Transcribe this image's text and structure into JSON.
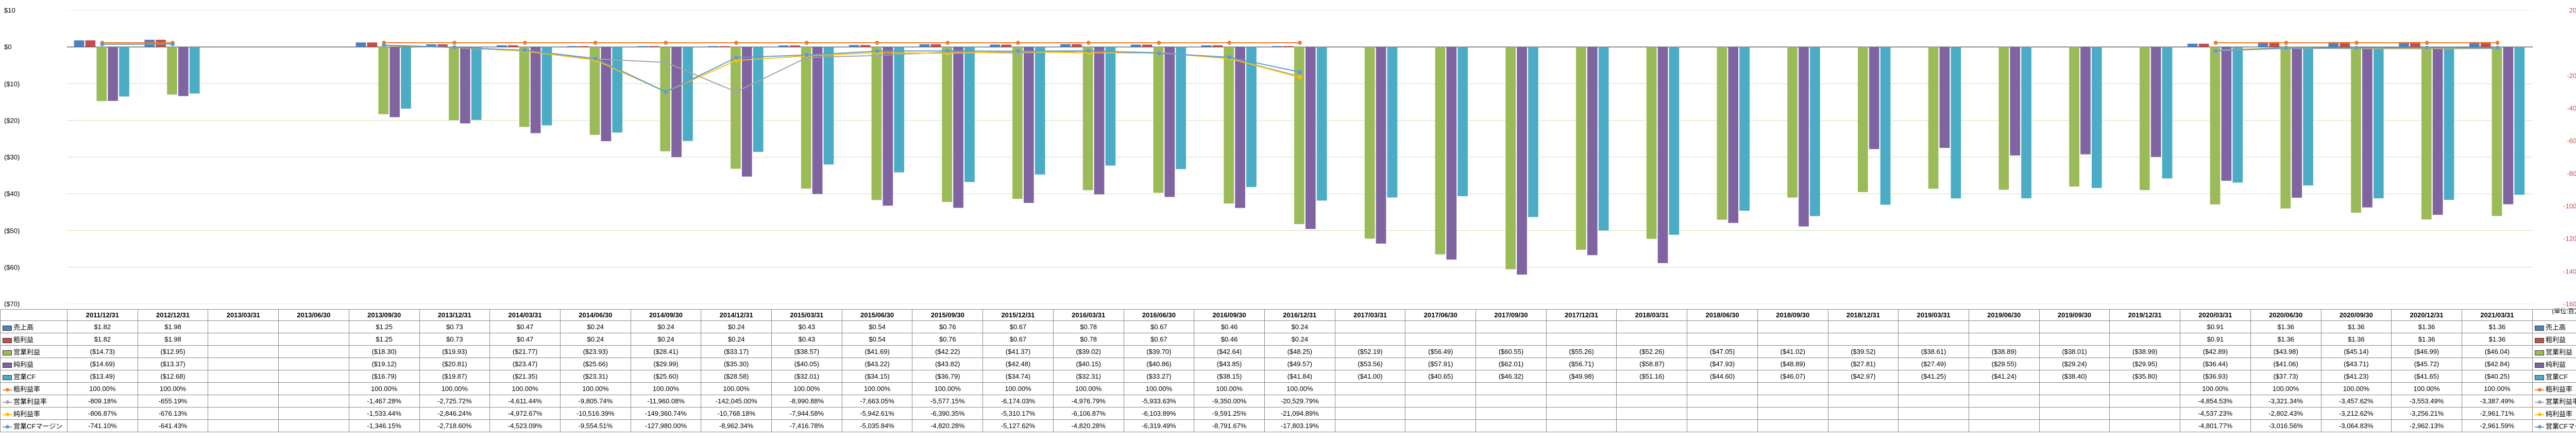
{
  "unit_label": "(単位:百万USD)",
  "periods": [
    "2011/12/31",
    "2012/12/31",
    "2013/03/31",
    "2013/06/30",
    "2013/09/30",
    "2013/12/31",
    "2014/03/31",
    "2014/06/30",
    "2014/09/30",
    "2014/12/31",
    "2015/03/31",
    "2015/06/30",
    "2015/09/30",
    "2015/12/31",
    "2016/03/31",
    "2016/06/30",
    "2016/09/30",
    "2016/12/31",
    "2017/03/31",
    "2017/06/30",
    "2017/09/30",
    "2017/12/31",
    "2018/03/31",
    "2018/06/30",
    "2018/09/30",
    "2018/12/31",
    "2019/03/31",
    "2019/06/30",
    "2019/09/30",
    "2019/12/31",
    "2020/03/31",
    "2020/06/30",
    "2020/09/30",
    "2020/12/31",
    "2021/03/31"
  ],
  "series_bar": {
    "sales": {
      "label": "売上高",
      "color": "#4f81bd",
      "vals": [
        1.82,
        1.98,
        null,
        null,
        1.25,
        0.73,
        0.47,
        0.24,
        0.24,
        0.24,
        0.43,
        0.54,
        0.76,
        0.67,
        0.78,
        0.67,
        0.46,
        0.24,
        null,
        null,
        null,
        null,
        null,
        null,
        null,
        null,
        null,
        null,
        null,
        null,
        0.91,
        1.36,
        1.36,
        1.36,
        1.36
      ]
    },
    "gross": {
      "label": "粗利益",
      "color": "#c0504d",
      "vals": [
        1.82,
        1.98,
        null,
        null,
        1.25,
        0.73,
        0.47,
        0.24,
        0.24,
        0.24,
        0.43,
        0.54,
        0.76,
        0.67,
        0.78,
        0.67,
        0.46,
        0.24,
        null,
        null,
        null,
        null,
        null,
        null,
        null,
        null,
        null,
        null,
        null,
        null,
        0.91,
        1.36,
        1.36,
        1.36,
        1.36
      ]
    },
    "op": {
      "label": "営業利益",
      "color": "#9bbb59",
      "vals": [
        -14.73,
        -12.95,
        null,
        null,
        -18.3,
        -19.93,
        -21.77,
        -23.93,
        -28.41,
        -33.17,
        -38.57,
        -41.69,
        -42.22,
        -41.37,
        -39.02,
        -39.7,
        -42.64,
        -48.25,
        -52.19,
        -56.49,
        -60.55,
        -55.26,
        -52.26,
        -47.05,
        -41.02,
        -39.52,
        -38.61,
        -38.89,
        -38.01,
        -38.99,
        -42.89,
        -43.98,
        -45.14,
        -46.99,
        -46.04
      ]
    },
    "net": {
      "label": "純利益",
      "color": "#8064a2",
      "vals": [
        -14.69,
        -13.37,
        null,
        null,
        -19.12,
        -20.81,
        -23.47,
        -25.66,
        -29.99,
        -35.3,
        -40.05,
        -43.22,
        -43.82,
        -42.48,
        -40.15,
        -40.86,
        -43.85,
        -49.57,
        -53.56,
        -57.91,
        -62.01,
        -56.71,
        -58.87,
        -47.93,
        -48.89,
        -27.81,
        -27.49,
        -29.55,
        -29.24,
        -29.95,
        -36.44,
        -41.06,
        -43.71,
        -45.72,
        -42.84
      ]
    },
    "ocf": {
      "label": "営業CF",
      "color": "#4bacc6",
      "vals": [
        -13.49,
        -12.68,
        null,
        null,
        -16.79,
        -19.87,
        -21.35,
        -23.31,
        -25.6,
        -28.58,
        -32.01,
        -34.15,
        -36.79,
        -34.74,
        -32.31,
        -33.27,
        -38.15,
        -41.84,
        -41.0,
        -40.65,
        -46.32,
        -49.98,
        -51.16,
        -44.6,
        -46.07,
        -42.97,
        -41.25,
        -41.24,
        -38.4,
        -35.8,
        -36.93,
        -37.73,
        -41.23,
        -41.65,
        -40.25
      ]
    }
  },
  "series_line": {
    "gross_m": {
      "label": "粗利益率",
      "color": "#ed7d31",
      "suffix": "%",
      "vals": [
        100.0,
        100.0,
        null,
        null,
        100.0,
        100.0,
        100.0,
        100.0,
        100.0,
        100.0,
        100.0,
        100.0,
        100.0,
        100.0,
        100.0,
        100.0,
        100.0,
        100.0,
        null,
        null,
        null,
        null,
        null,
        null,
        null,
        null,
        null,
        null,
        null,
        null,
        100.0,
        100.0,
        100.0,
        100.0,
        100.0
      ]
    },
    "op_m": {
      "label": "営業利益率",
      "color": "#a5a5a5",
      "suffix": "%",
      "vals": [
        -809.18,
        -655.19,
        null,
        null,
        -1467.28,
        -2725.72,
        -4611.44,
        -9805.74,
        -11960.08,
        -142045.0,
        -8990.88,
        -7663.05,
        -5577.15,
        -6174.03,
        -4976.79,
        -5933.63,
        -9350.0,
        -20529.79,
        null,
        null,
        null,
        null,
        null,
        null,
        null,
        null,
        null,
        null,
        null,
        null,
        -4854.53,
        -3321.34,
        -3457.62,
        -3553.49,
        -3387.49
      ]
    },
    "net_m": {
      "label": "純利益率",
      "color": "#ffc000",
      "suffix": "%",
      "vals": [
        -806.87,
        -676.13,
        null,
        null,
        -1533.44,
        -2846.24,
        -4972.67,
        -10516.39,
        -149360.74,
        -10768.18,
        -7944.58,
        -5942.61,
        -6390.35,
        -5310.17,
        -6106.87,
        -6103.89,
        -9591.25,
        -21094.89,
        null,
        null,
        null,
        null,
        null,
        null,
        null,
        null,
        null,
        null,
        null,
        null,
        -4537.23,
        -2802.43,
        -3212.62,
        -3256.21,
        -2961.71
      ]
    },
    "ocf_m": {
      "label": "営業CFマージン",
      "color": "#5b9bd5",
      "suffix": "%",
      "vals": [
        -741.1,
        -641.43,
        null,
        null,
        -1346.15,
        -2718.6,
        -4523.09,
        -9554.51,
        -127980.0,
        -8962.34,
        -7416.78,
        -5035.84,
        -4820.28,
        -5127.62,
        -4820.28,
        -6319.49,
        -8791.67,
        -17803.19,
        null,
        null,
        null,
        null,
        null,
        null,
        null,
        null,
        null,
        null,
        null,
        null,
        -4801.77,
        -3016.56,
        -3064.83,
        -2962.13,
        -2961.59
      ]
    }
  },
  "axis_left": {
    "min": -70,
    "max": 10,
    "step": 10,
    "fmt_prefix": "$",
    "paren_neg": true
  },
  "axis_right": {
    "min": -160000,
    "max": 20000,
    "step": 20000,
    "suffix": "%"
  },
  "chart_colors": {
    "grid": "#9bbb59",
    "bg": "#ffffff",
    "axis": "#888"
  },
  "row_order_bar": [
    "sales",
    "gross",
    "op",
    "net",
    "ocf"
  ],
  "row_order_line": [
    "gross_m",
    "op_m",
    "net_m",
    "ocf_m"
  ],
  "line_clamp": 30000
}
